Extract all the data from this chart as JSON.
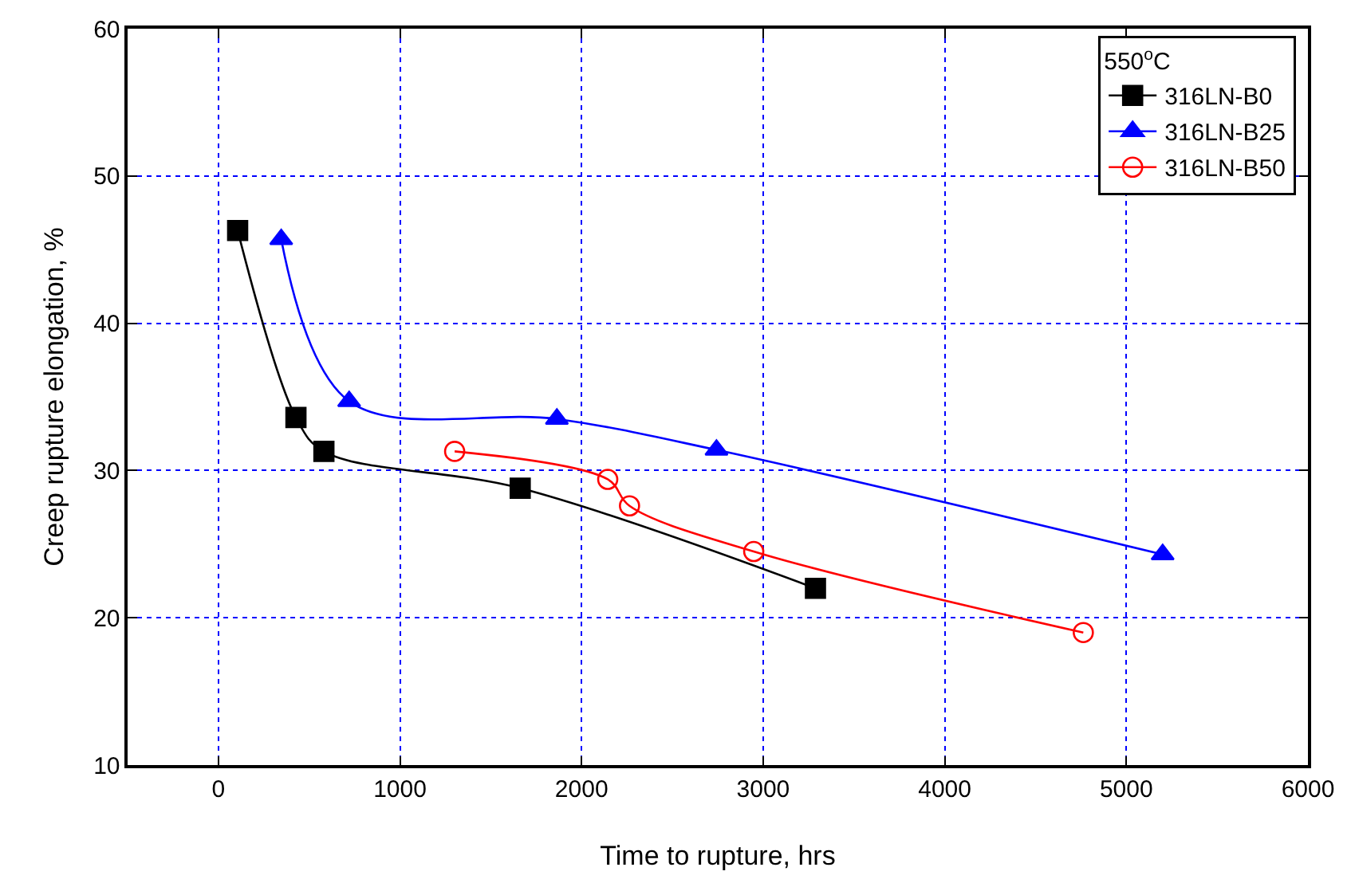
{
  "chart_data": {
    "type": "line",
    "xlabel": "Time to rupture, hrs",
    "ylabel": "Creep rupture elongation, %",
    "legend_title": "550$^{o}$C",
    "xlim": [
      -500,
      6000
    ],
    "xticks": [
      0,
      1000,
      2000,
      3000,
      4000,
      5000,
      6000
    ],
    "ylim": [
      10,
      60
    ],
    "yticks": [
      10,
      20,
      30,
      40,
      50,
      60
    ],
    "grid": true,
    "legend": "top right",
    "series": [
      {
        "name": "316LN-B0",
        "color": "#000000",
        "marker": "square",
        "x": [
          106,
          427,
          581,
          1662,
          3288
        ],
        "values": [
          46.3,
          33.6,
          31.3,
          28.8,
          22.0
        ]
      },
      {
        "name": "316LN-B25",
        "color": "#0000ff",
        "marker": "triangle",
        "x": [
          346,
          720,
          1864,
          2743,
          5200
        ],
        "values": [
          45.7,
          34.7,
          33.5,
          31.4,
          24.3
        ]
      },
      {
        "name": "316LN-B50",
        "color": "#ff0000",
        "marker": "circle",
        "x": [
          1301,
          2144,
          2264,
          2948,
          4763
        ],
        "values": [
          31.3,
          29.4,
          27.6,
          24.5,
          19.0
        ]
      }
    ]
  }
}
